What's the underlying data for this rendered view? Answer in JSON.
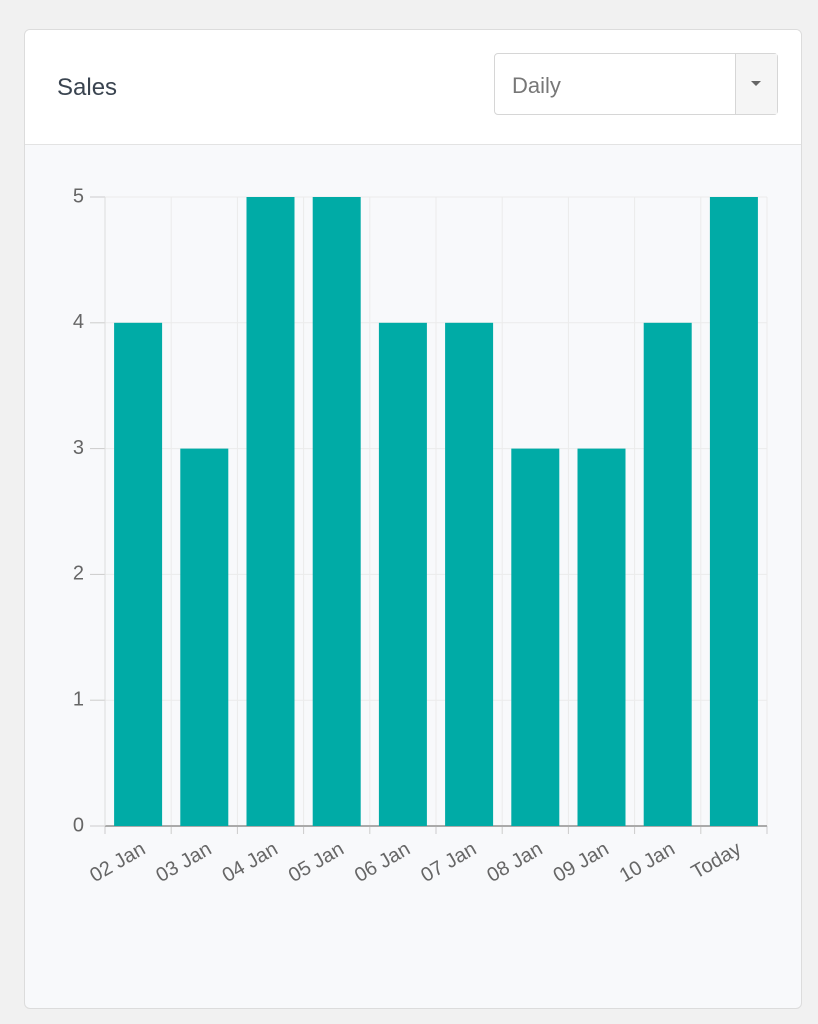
{
  "header": {
    "title": "Sales",
    "select": "Daily"
  },
  "chart_data": {
    "type": "bar",
    "categories": [
      "02 Jan",
      "03 Jan",
      "04 Jan",
      "05 Jan",
      "06 Jan",
      "07 Jan",
      "08 Jan",
      "09 Jan",
      "10 Jan",
      "Today"
    ],
    "values": [
      4,
      3,
      5,
      5,
      4,
      4,
      3,
      3,
      4,
      5
    ],
    "color": "#00aba6",
    "ylim": [
      0,
      5
    ],
    "yticks": [
      0,
      1,
      2,
      3,
      4,
      5
    ],
    "grid": true
  }
}
